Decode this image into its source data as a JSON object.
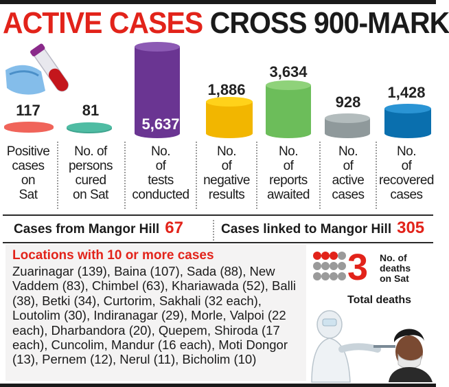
{
  "headline": {
    "part1": "ACTIVE CASES",
    "part2": "CROSS 900-MARK"
  },
  "stats": [
    {
      "value": "117",
      "label": [
        "Positive",
        "cases",
        "on",
        "Sat"
      ],
      "color": "#f0645a",
      "top": "#f0645a"
    },
    {
      "value": "81",
      "label": [
        "No. of",
        "persons",
        "cured",
        "on Sat"
      ],
      "color": "#3fa58f",
      "top": "#4fbca3"
    },
    {
      "value": "5,637",
      "label": [
        "No.",
        "of",
        "tests",
        "conducted"
      ],
      "color": "#6a3592",
      "top": "#8c5ab4"
    },
    {
      "value": "1,886",
      "label": [
        "No.",
        "of",
        "negative",
        "results"
      ],
      "color": "#f2b600",
      "top": "#ffd21a"
    },
    {
      "value": "3,634",
      "label": [
        "No.",
        "of",
        "reports",
        "awaited"
      ],
      "color": "#6cbd5a",
      "top": "#8fd27a"
    },
    {
      "value": "928",
      "label": [
        "No.",
        "of",
        "active",
        "cases"
      ],
      "color": "#8f999b",
      "top": "#b3bcbd"
    },
    {
      "value": "1,428",
      "label": [
        "No.",
        "of",
        "recovered",
        "cases"
      ],
      "color": "#0a6fae",
      "top": "#2a94d4"
    }
  ],
  "mangor": {
    "from_label": "Cases from Mangor Hill",
    "from_value": "67",
    "linked_label": "Cases linked to Mangor Hill",
    "linked_value": "305"
  },
  "locations": {
    "title": "Locations with 10 or more cases",
    "text": "Zuarinagar (139), Baina (107), Sada (88), New Vaddem (83), Chimbel (63), Khariawada (52), Balli (38), Betki (34), Curtorim, Sakhali (32 each), Loutolim (30), Indiranagar (29), Morle, Valpoi (22 each), Dharbandora (20), Quepem, Shiroda (17 each), Cuncolim, Mandur (16 each), Moti Dongor (13), Pernem (12), Nerul (11), Bicholim (10)"
  },
  "deaths": {
    "count": "3",
    "label": [
      "No. of",
      "deaths",
      "on Sat"
    ],
    "total_label": "Total deaths",
    "total_value": "12",
    "dots_red": 3,
    "dots_total": 12
  },
  "colors": {
    "accent": "#e2231a",
    "dot_grey": "#9a9a9a"
  }
}
